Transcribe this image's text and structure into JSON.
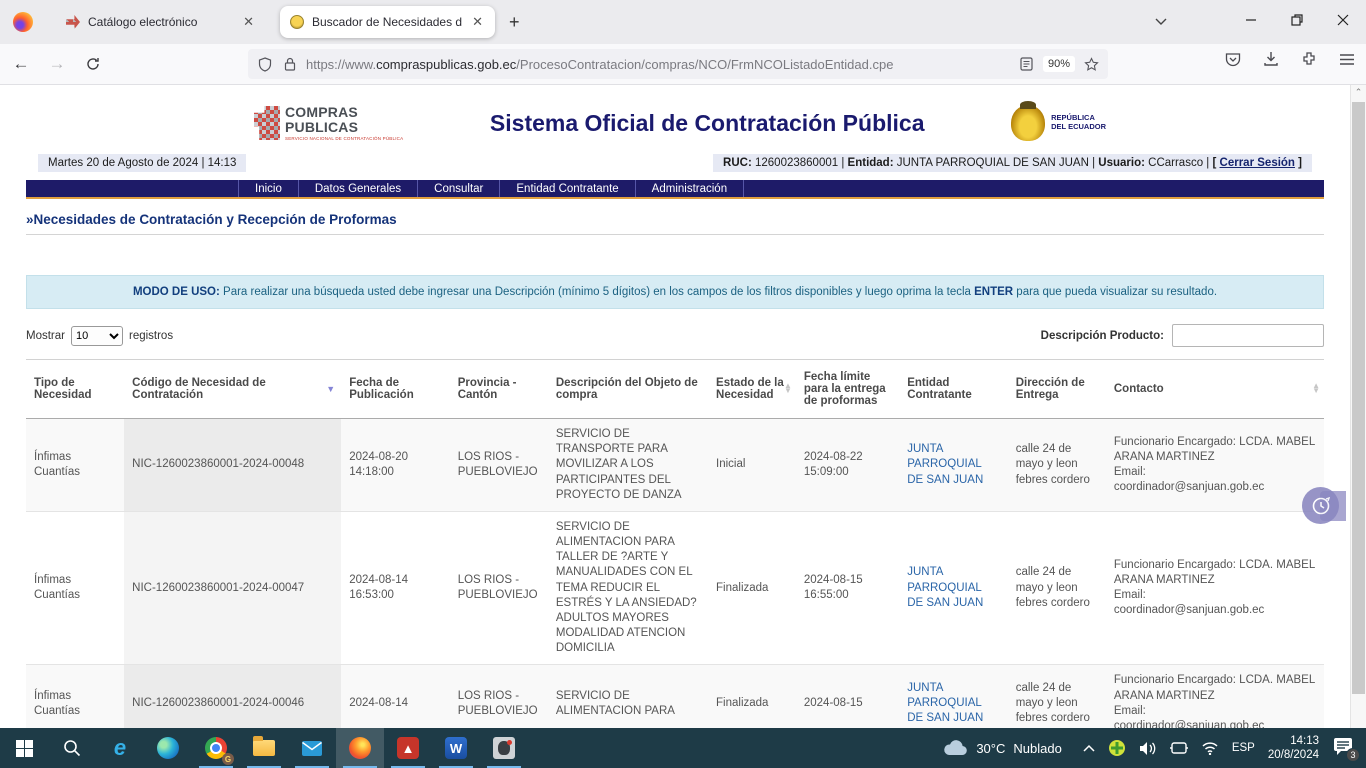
{
  "browser": {
    "tabs": [
      {
        "title": "Catálogo electrónico",
        "active": false
      },
      {
        "title": "Buscador de Necesidades de Co",
        "active": true
      }
    ],
    "new_tab": "+",
    "url_prefix": "https://www.",
    "url_domain": "compraspublicas.gob.ec",
    "url_path": "/ProcesoContratacion/compras/NCO/FrmNCOListadoEntidad.cpe",
    "zoom_badge": "90%"
  },
  "header": {
    "logo_line1": "COMPRAS",
    "logo_line2": "PUBLICAS",
    "logo_sub": "SERVICIO NACIONAL DE CONTRATACIÓN PÚBLICA",
    "title": "Sistema Oficial de Contratación Pública",
    "gov_line1": "REPÚBLICA",
    "gov_line2": "DEL ECUADOR"
  },
  "statusbar": {
    "datetime": "Martes 20 de Agosto de 2024 | 14:13",
    "ruc_label": "RUC:",
    "ruc_value": "1260023860001",
    "entidad_label": "Entidad:",
    "entidad_value": "JUNTA PARROQUIAL DE SAN JUAN",
    "usuario_label": "Usuario:",
    "usuario_value": "CCarrasco",
    "logout_open": "[ ",
    "logout_label": "Cerrar Sesión",
    "logout_close": " ]"
  },
  "nav": {
    "items": [
      "Inicio",
      "Datos Generales",
      "Consultar",
      "Entidad Contratante",
      "Administración"
    ]
  },
  "page": {
    "title": "»Necesidades de Contratación y Recepción de Proformas",
    "usage_label": "MODO DE USO:",
    "usage_text_1": " Para realizar una búsqueda usted debe ingresar una Descripción (mínimo 5 dígitos) en los campos de los filtros disponibles y luego oprima la tecla ",
    "usage_enter": "ENTER",
    "usage_text_2": " para que pueda visualizar su resultado.",
    "show_label": "Mostrar",
    "show_value": "10",
    "records_label": "registros",
    "filter_label": "Descripción Producto:"
  },
  "table": {
    "columns": [
      {
        "label": "Tipo de Necesidad",
        "sort": null
      },
      {
        "label": "Código de Necesidad de Contratación",
        "sort": "desc"
      },
      {
        "label": "Fecha de Publicación",
        "sort": null
      },
      {
        "label": "Provincia - Cantón",
        "sort": null
      },
      {
        "label": "Descripción del Objeto de compra",
        "sort": null
      },
      {
        "label": "Estado de la Necesidad",
        "sort": "both"
      },
      {
        "label": "Fecha límite para la entrega de proformas",
        "sort": null
      },
      {
        "label": "Entidad Contratante",
        "sort": null
      },
      {
        "label": "Dirección de Entrega",
        "sort": null
      },
      {
        "label": "Contacto",
        "sort": "both"
      }
    ],
    "rows": [
      {
        "tipo": "Ínfimas Cuantías",
        "codigo": "NIC-1260023860001-2024-00048",
        "fecha_pub": "2024-08-20 14:18:00",
        "provincia": "LOS RIOS - PUEBLOVIEJO",
        "descripcion": "SERVICIO DE TRANSPORTE PARA MOVILIZAR A LOS PARTICIPANTES DEL PROYECTO DE DANZA",
        "estado": "Inicial",
        "fecha_limite": "2024-08-22 15:09:00",
        "entidad": "JUNTA PARROQUIAL DE SAN JUAN",
        "direccion": "calle 24 de mayo y leon febres cordero",
        "contacto": "Funcionario Encargado: LCDA. MABEL ARANA MARTINEZ",
        "email_label": "Email:",
        "email": "coordinador@sanjuan.gob.ec"
      },
      {
        "tipo": "Ínfimas Cuantías",
        "codigo": "NIC-1260023860001-2024-00047",
        "fecha_pub": "2024-08-14 16:53:00",
        "provincia": "LOS RIOS - PUEBLOVIEJO",
        "descripcion": "SERVICIO DE ALIMENTACION PARA TALLER DE ?ARTE Y MANUALIDADES CON EL TEMA REDUCIR EL ESTRÉS Y LA ANSIEDAD? ADULTOS MAYORES MODALIDAD ATENCION DOMICILIA",
        "estado": "Finalizada",
        "fecha_limite": "2024-08-15 16:55:00",
        "entidad": "JUNTA PARROQUIAL DE SAN JUAN",
        "direccion": "calle 24 de mayo y leon febres cordero",
        "contacto": "Funcionario Encargado: LCDA. MABEL ARANA MARTINEZ",
        "email_label": "Email:",
        "email": "coordinador@sanjuan.gob.ec"
      },
      {
        "tipo": "Ínfimas Cuantías",
        "codigo": "NIC-1260023860001-2024-00046",
        "fecha_pub": "2024-08-14",
        "provincia": "LOS RIOS - PUEBLOVIEJO",
        "descripcion": "SERVICIO DE ALIMENTACION PARA",
        "estado": "Finalizada",
        "fecha_limite": "2024-08-15",
        "entidad": "JUNTA PARROQUIAL DE SAN JUAN",
        "direccion": "calle 24 de mayo y leon febres cordero",
        "contacto": "Funcionario Encargado: LCDA. MABEL ARANA MARTINEZ",
        "email_label": "Email:",
        "email": "coordinador@sanjuan.gob.ec"
      }
    ]
  },
  "taskbar": {
    "apps": [
      "start",
      "search",
      "internet-explorer",
      "edge",
      "chrome",
      "file-explorer",
      "mail",
      "firefox",
      "acrobat",
      "word",
      "java-app"
    ],
    "weather_temp": "30°C",
    "weather_desc": "Nublado",
    "lang": "ESP",
    "time": "14:13",
    "date": "20/8/2024",
    "notif_count": "3"
  }
}
